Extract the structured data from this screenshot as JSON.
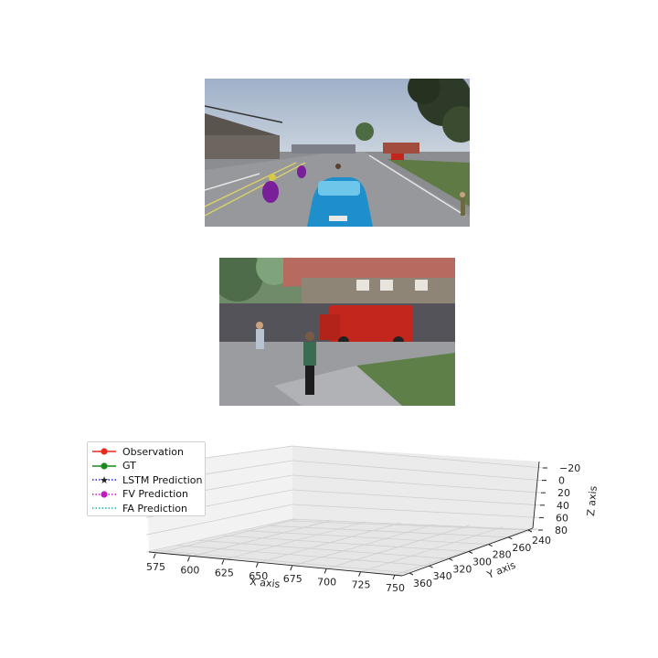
{
  "figure": {
    "scene_top": {
      "description_icon": "car-driving-scene"
    },
    "scene_bottom": {
      "description_icon": "pedestrian-crop-scene"
    }
  },
  "chart_data": {
    "type": "line",
    "projection": "3d",
    "grid": true,
    "legend_position": "upper-left",
    "xlabel": "X axis",
    "ylabel": "Y axis",
    "zlabel": "Z axis",
    "x_ticks": [
      "575",
      "600",
      "625",
      "650",
      "675",
      "700",
      "725",
      "750"
    ],
    "y_ticks": [
      "360",
      "340",
      "320",
      "300",
      "280",
      "260",
      "240"
    ],
    "z_ticks": [
      "−20",
      "0",
      "20",
      "40",
      "60",
      "80"
    ],
    "xlim": [
      570,
      760
    ],
    "ylim": [
      240,
      365
    ],
    "zlim": [
      -25,
      85
    ],
    "series": [
      {
        "name": "Observation",
        "color": "#e8291c",
        "marker": "circle",
        "linestyle": "solid",
        "x": [],
        "y": [],
        "z": []
      },
      {
        "name": "GT",
        "color": "#1a8a1a",
        "marker": "circle",
        "linestyle": "solid",
        "x": [],
        "y": [],
        "z": []
      },
      {
        "name": "LSTM Prediction",
        "color": "#1f1fd6",
        "marker": "star",
        "linestyle": "dotted",
        "x": [],
        "y": [],
        "z": []
      },
      {
        "name": "FV Prediction",
        "color": "#c01cc0",
        "marker": "circle",
        "linestyle": "dotted",
        "x": [],
        "y": [],
        "z": []
      },
      {
        "name": "FA Prediction",
        "color": "#17b3b3",
        "marker": "none",
        "linestyle": "dotted",
        "x": [],
        "y": [],
        "z": []
      }
    ]
  }
}
